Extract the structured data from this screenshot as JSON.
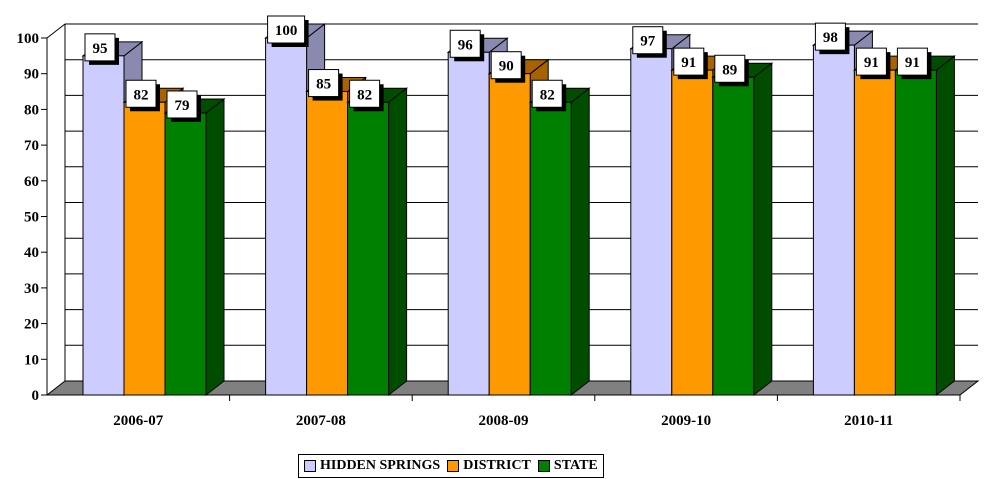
{
  "chart_data": {
    "type": "bar",
    "categories": [
      "2006-07",
      "2007-08",
      "2008-09",
      "2009-10",
      "2010-11"
    ],
    "series": [
      {
        "name": "HIDDEN SPRINGS",
        "values": [
          95,
          100,
          96,
          97,
          98
        ],
        "color": "#ccccff",
        "side_color": "#8a8ab0"
      },
      {
        "name": "DISTRICT",
        "values": [
          82,
          85,
          90,
          91,
          91
        ],
        "color": "#ff9900",
        "side_color": "#a86300"
      },
      {
        "name": "STATE",
        "values": [
          79,
          82,
          82,
          89,
          91
        ],
        "color": "#008000",
        "side_color": "#004d00"
      }
    ],
    "ylim": [
      0,
      100
    ],
    "yticks": [
      0,
      10,
      20,
      30,
      40,
      50,
      60,
      70,
      80,
      90,
      100
    ],
    "grid": true,
    "legend": "bottom-center",
    "floor_color": "#808080",
    "data_labels": true
  }
}
